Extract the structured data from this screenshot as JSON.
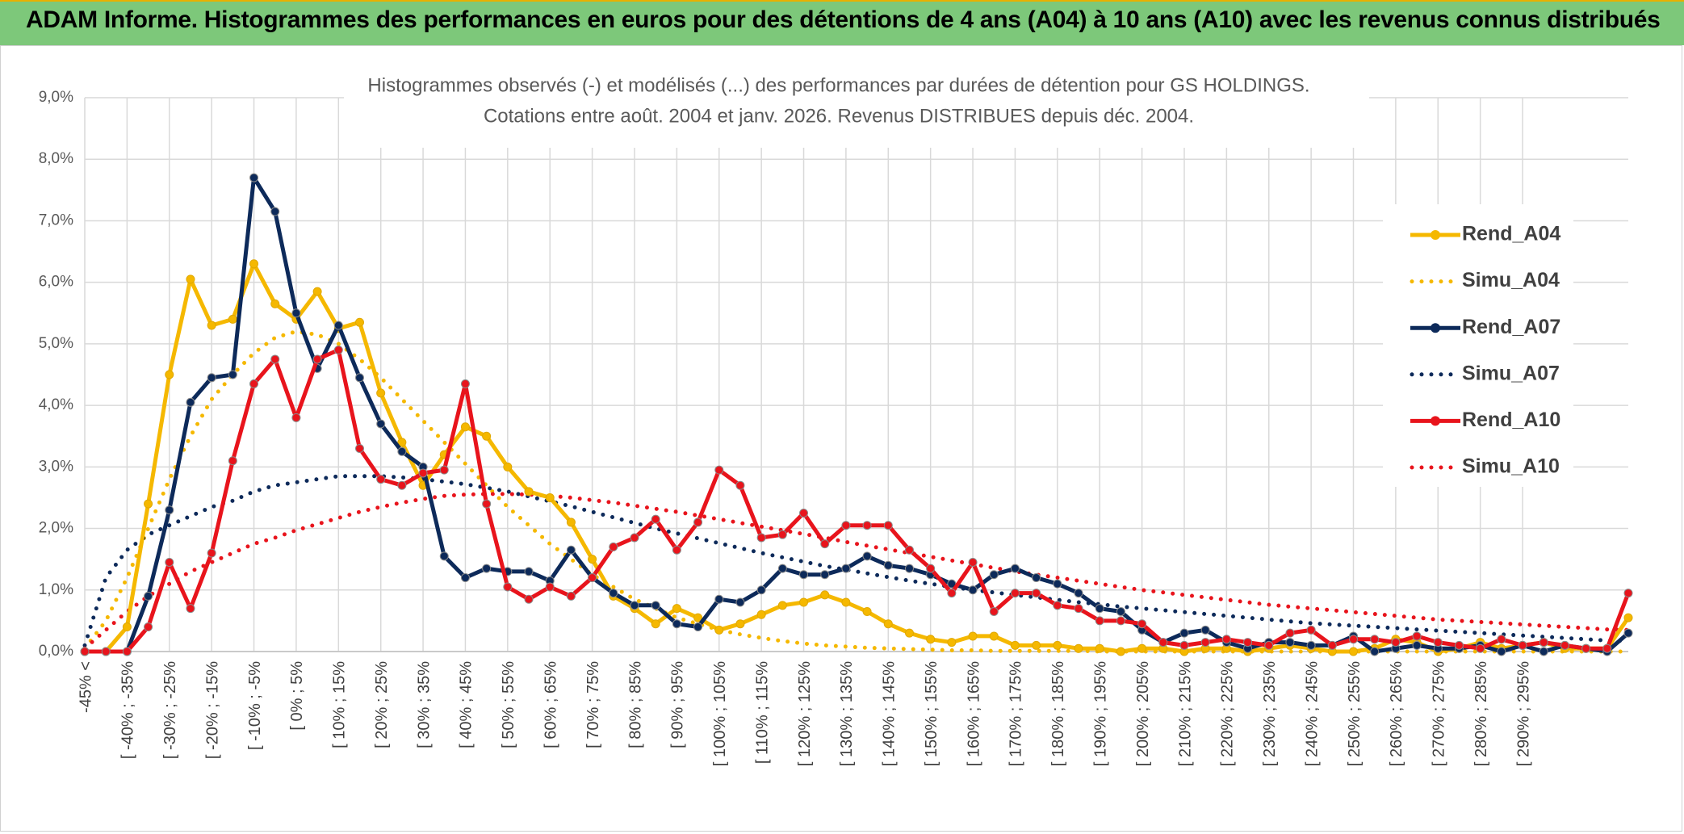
{
  "banner": {
    "title": "ADAM Informe. Histogrammes des performances en euros pour des détentions de 4 ans (A04) à 10 ans (A10) avec les revenus connus distribués"
  },
  "colors": {
    "banner_bg": "#7dc87a",
    "a04": "#f5b800",
    "a07": "#0d2a5a",
    "a10": "#e8141c",
    "grid": "#d9d9d9"
  },
  "chart_data": {
    "type": "line",
    "title": "Histogrammes observés (-) et modélisés (...) des performances par durées de détention pour GS HOLDINGS.",
    "subtitle": "Cotations entre août. 2004 et janv. 2026. Revenus DISTRIBUES depuis déc. 2004.",
    "ylim": [
      0,
      9
    ],
    "yticks": [
      "0,0%",
      "1,0%",
      "2,0%",
      "3,0%",
      "4,0%",
      "5,0%",
      "6,0%",
      "7,0%",
      "8,0%",
      "9,0%"
    ],
    "xtick_labels": [
      "-45% <",
      "[ -40% ; -35%",
      "[ -30% ; -25%",
      "[ -20% ; -15%",
      "[ -10% ; -5%",
      "[ 0% ; 5%",
      "[ 10% ; 15%",
      "[ 20% ; 25%",
      "[ 30% ; 35%",
      "[ 40% ; 45%",
      "[ 50% ; 55%",
      "[ 60% ; 65%",
      "[ 70% ; 75%",
      "[ 80% ; 85%",
      "[ 90% ; 95%",
      "[ 100% ; 105%",
      "[ 110% ; 115%",
      "[ 120% ; 125%",
      "[ 130% ; 135%",
      "[ 140% ; 145%",
      "[ 150% ; 155%",
      "[ 160% ; 165%",
      "[ 170% ; 175%",
      "[ 180% ; 185%",
      "[ 190% ; 195%",
      "[ 200% ; 205%",
      "[ 210% ; 215%",
      "[ 220% ; 225%",
      "[ 230% ; 235%",
      "[ 240% ; 245%",
      "[ 250% ; 255%",
      "[ 260% ; 265%",
      "[ 270% ; 275%",
      "[ 280% ; 285%",
      "[ 290% ; 295%"
    ],
    "grid": true,
    "legend_position": "right",
    "series": [
      {
        "name": "Rend_A04",
        "style": "solid",
        "color": "#f5b800",
        "values": [
          0,
          0,
          0.4,
          2.4,
          4.5,
          6.05,
          5.3,
          5.4,
          6.3,
          5.65,
          5.4,
          5.85,
          5.25,
          5.35,
          4.2,
          3.4,
          2.7,
          3.2,
          3.65,
          3.5,
          3.0,
          2.6,
          2.5,
          2.1,
          1.5,
          0.9,
          0.7,
          0.45,
          0.7,
          0.55,
          0.35,
          0.45,
          0.6,
          0.75,
          0.8,
          0.92,
          0.8,
          0.65,
          0.45,
          0.3,
          0.2,
          0.15,
          0.25,
          0.25,
          0.1,
          0.1,
          0.1,
          0.05,
          0.05,
          0.0,
          0.05,
          0.05,
          0.0,
          0.05,
          0.05,
          0.0,
          0.05,
          0.1,
          0.05,
          0.0,
          0.0,
          0.05,
          0.2,
          0.15,
          0.0,
          0.05,
          0.15,
          0.05,
          0.1,
          0.15,
          0.05,
          0.05,
          0.05,
          0.55
        ]
      },
      {
        "name": "Simu_A04",
        "style": "dotted",
        "color": "#f5b800",
        "values": [
          0.05,
          0.5,
          1.2,
          2.0,
          2.8,
          3.5,
          4.1,
          4.5,
          4.85,
          5.1,
          5.2,
          5.15,
          5.0,
          4.75,
          4.45,
          4.1,
          3.75,
          3.4,
          3.05,
          2.7,
          2.35,
          2.05,
          1.75,
          1.5,
          1.25,
          1.05,
          0.85,
          0.7,
          0.55,
          0.45,
          0.35,
          0.28,
          0.22,
          0.17,
          0.13,
          0.1,
          0.08,
          0.06,
          0.05,
          0.04,
          0.03,
          0.02,
          0.02,
          0.01,
          0.01,
          0.01,
          0.01,
          0.01,
          0.0,
          0.0,
          0.0,
          0.0,
          0.0,
          0.0,
          0.0,
          0.0,
          0.0,
          0.0,
          0.0,
          0.0,
          0.0,
          0.0,
          0.0,
          0.0,
          0.0,
          0.0,
          0.0,
          0.0,
          0.0,
          0.0,
          0.0,
          0.0,
          0.0,
          0.0
        ]
      },
      {
        "name": "Rend_A07",
        "style": "solid",
        "color": "#0d2a5a",
        "values": [
          0,
          0,
          0,
          0.9,
          2.3,
          4.05,
          4.45,
          4.5,
          7.7,
          7.15,
          5.5,
          4.6,
          5.3,
          4.45,
          3.7,
          3.25,
          3.0,
          1.55,
          1.2,
          1.35,
          1.3,
          1.3,
          1.15,
          1.65,
          1.2,
          0.95,
          0.75,
          0.75,
          0.45,
          0.4,
          0.85,
          0.8,
          1.0,
          1.35,
          1.25,
          1.25,
          1.35,
          1.55,
          1.4,
          1.35,
          1.25,
          1.1,
          1.0,
          1.25,
          1.35,
          1.2,
          1.1,
          0.95,
          0.7,
          0.65,
          0.35,
          0.15,
          0.3,
          0.35,
          0.15,
          0.05,
          0.15,
          0.15,
          0.1,
          0.1,
          0.25,
          0.0,
          0.05,
          0.1,
          0.05,
          0.05,
          0.1,
          0.0,
          0.1,
          0.0,
          0.1,
          0.05,
          0.0,
          0.3
        ]
      },
      {
        "name": "Simu_A07",
        "style": "dotted",
        "color": "#0d2a5a",
        "values": [
          0.1,
          1.2,
          1.65,
          1.9,
          2.05,
          2.2,
          2.35,
          2.45,
          2.6,
          2.7,
          2.75,
          2.8,
          2.85,
          2.85,
          2.85,
          2.83,
          2.8,
          2.76,
          2.72,
          2.66,
          2.6,
          2.52,
          2.44,
          2.36,
          2.27,
          2.18,
          2.09,
          2.0,
          1.92,
          1.84,
          1.76,
          1.68,
          1.6,
          1.53,
          1.46,
          1.39,
          1.33,
          1.27,
          1.21,
          1.15,
          1.1,
          1.05,
          1.0,
          0.96,
          0.92,
          0.88,
          0.84,
          0.8,
          0.77,
          0.73,
          0.7,
          0.67,
          0.64,
          0.61,
          0.58,
          0.55,
          0.52,
          0.49,
          0.46,
          0.44,
          0.42,
          0.4,
          0.38,
          0.36,
          0.34,
          0.32,
          0.3,
          0.28,
          0.26,
          0.24,
          0.22,
          0.2,
          0.18,
          0.17
        ]
      },
      {
        "name": "Rend_A10",
        "style": "solid",
        "color": "#e8141c",
        "values": [
          0,
          0,
          0,
          0.4,
          1.45,
          0.7,
          1.6,
          3.1,
          4.35,
          4.75,
          3.8,
          4.75,
          4.9,
          3.3,
          2.8,
          2.7,
          2.9,
          2.95,
          4.35,
          2.4,
          1.05,
          0.85,
          1.05,
          0.9,
          1.2,
          1.7,
          1.85,
          2.15,
          1.65,
          2.1,
          2.95,
          2.7,
          1.85,
          1.9,
          2.25,
          1.75,
          2.05,
          2.05,
          2.05,
          1.65,
          1.35,
          0.95,
          1.45,
          0.65,
          0.95,
          0.95,
          0.75,
          0.7,
          0.5,
          0.5,
          0.45,
          0.15,
          0.1,
          0.15,
          0.2,
          0.15,
          0.1,
          0.3,
          0.35,
          0.1,
          0.2,
          0.2,
          0.15,
          0.25,
          0.15,
          0.1,
          0.05,
          0.2,
          0.1,
          0.15,
          0.1,
          0.05,
          0.05,
          0.95
        ]
      },
      {
        "name": "Simu_A10",
        "style": "dotted",
        "color": "#e8141c",
        "values": [
          0.05,
          0.35,
          0.65,
          0.9,
          1.1,
          1.3,
          1.45,
          1.6,
          1.75,
          1.85,
          1.97,
          2.07,
          2.17,
          2.27,
          2.35,
          2.42,
          2.48,
          2.53,
          2.55,
          2.56,
          2.56,
          2.55,
          2.53,
          2.5,
          2.46,
          2.42,
          2.37,
          2.32,
          2.27,
          2.21,
          2.15,
          2.09,
          2.03,
          1.97,
          1.91,
          1.85,
          1.78,
          1.72,
          1.66,
          1.6,
          1.54,
          1.48,
          1.42,
          1.36,
          1.3,
          1.25,
          1.2,
          1.15,
          1.1,
          1.05,
          1.0,
          0.96,
          0.92,
          0.88,
          0.84,
          0.8,
          0.76,
          0.73,
          0.7,
          0.67,
          0.64,
          0.61,
          0.58,
          0.55,
          0.52,
          0.5,
          0.48,
          0.46,
          0.44,
          0.42,
          0.4,
          0.38,
          0.36,
          0.35
        ]
      }
    ]
  }
}
